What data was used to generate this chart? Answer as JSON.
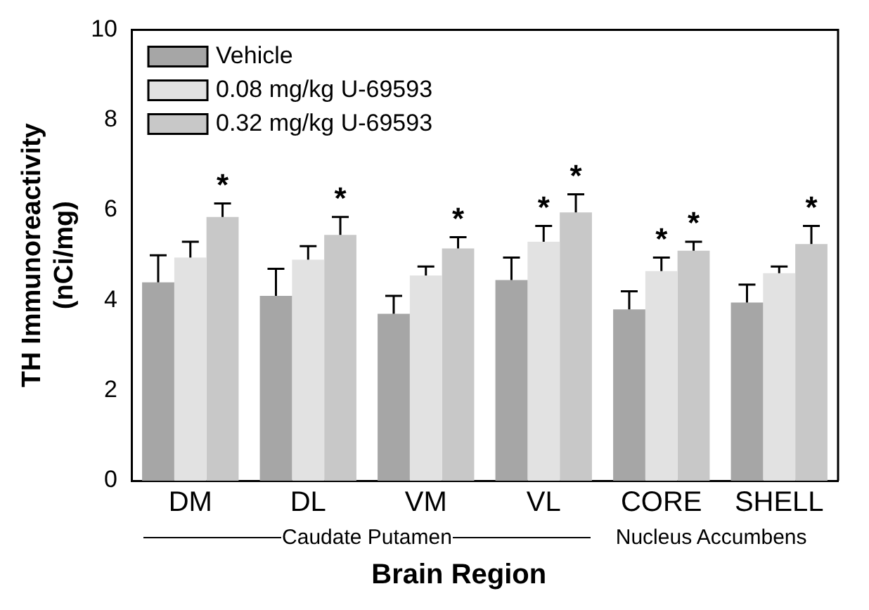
{
  "chart_data": {
    "type": "bar",
    "ylabel": "TH Immunoreactivity (nCi/mg)",
    "xlabel": "Brain Region",
    "categories": [
      "DM",
      "DL",
      "VM",
      "VL",
      "CORE",
      "SHELL"
    ],
    "series": [
      {
        "name": "Vehicle",
        "color": "#a6a6a6",
        "values": [
          4.4,
          4.1,
          3.7,
          4.45,
          3.8,
          3.95
        ],
        "errors": [
          [
            4.4,
            5.0
          ],
          [
            4.1,
            4.7
          ],
          [
            3.7,
            4.1
          ],
          [
            4.45,
            4.95
          ],
          [
            3.8,
            4.2
          ],
          [
            3.95,
            4.35
          ]
        ]
      },
      {
        "name": "0.08 mg/kg U-69593",
        "color": "#e2e2e2",
        "values": [
          4.95,
          4.9,
          4.55,
          5.3,
          4.65,
          4.6
        ],
        "value_labels": [
          null,
          null,
          null,
          "*",
          "*",
          null
        ],
        "errors": [
          [
            4.95,
            5.3
          ],
          [
            4.9,
            5.2
          ],
          [
            4.55,
            4.75
          ],
          [
            5.3,
            5.65
          ],
          [
            4.65,
            4.95
          ],
          [
            4.6,
            4.75
          ]
        ]
      },
      {
        "name": "0.32 mg/kg U-69593",
        "color": "#c8c8c8",
        "values": [
          5.85,
          5.45,
          5.15,
          5.95,
          5.1,
          5.25
        ],
        "value_labels": [
          "*",
          "*",
          "*",
          "*",
          "*",
          "*"
        ],
        "errors": [
          [
            5.85,
            6.15
          ],
          [
            5.45,
            5.85
          ],
          [
            5.15,
            5.4
          ],
          [
            5.95,
            6.35
          ],
          [
            5.1,
            5.3
          ],
          [
            5.25,
            5.65
          ]
        ]
      }
    ],
    "ylim": [
      0,
      10
    ],
    "yticks": [
      0,
      2,
      4,
      6,
      8,
      10
    ],
    "grid": false,
    "legend": "top left",
    "annotations": [
      "Caudate Putamen",
      "Nucleus Accumbens"
    ]
  }
}
